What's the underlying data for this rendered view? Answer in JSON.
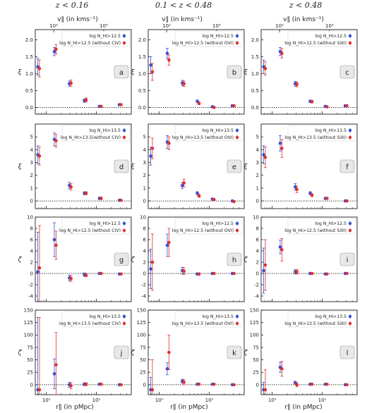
{
  "column_titles": [
    "z < 0.16",
    "0.1 < z < 0.48",
    "z < 0.48"
  ],
  "top_axis_label": "v∥ (in kms⁻¹)",
  "bottom_axis_label": "r∥ (in pMpc)",
  "chart_data": [
    {
      "type": "scatter",
      "panel": "a",
      "ylabel": "ξ",
      "ylim": [
        -0.2,
        2.3
      ],
      "yticks": [
        0.0,
        0.5,
        1.0,
        1.5,
        2.0
      ],
      "xlim": [
        0.6,
        50
      ],
      "series": [
        {
          "name": "log N_HI>12.5",
          "color": "#3a4fd6",
          "x": [
            0.7,
            1.5,
            3.0,
            6.0,
            12.0,
            30.0
          ],
          "y": [
            1.2,
            1.65,
            0.7,
            0.2,
            0.03,
            0.08
          ],
          "err": [
            0.25,
            0.12,
            0.08,
            0.05,
            0.03,
            0.03
          ]
        },
        {
          "name": "log N_HI>12.5 (without CIV)",
          "color": "#e03030",
          "x": [
            0.7,
            1.5,
            3.0,
            6.0,
            12.0,
            30.0
          ],
          "y": [
            1.15,
            1.72,
            0.72,
            0.22,
            0.03,
            0.08
          ],
          "err": [
            0.25,
            0.14,
            0.09,
            0.06,
            0.03,
            0.03
          ]
        }
      ],
      "tag": "a"
    },
    {
      "type": "scatter",
      "panel": "b",
      "ylabel": "ξ",
      "ylim": [
        -0.2,
        2.3
      ],
      "yticks": [
        0.0,
        0.5,
        1.0,
        1.5,
        2.0
      ],
      "xlim": [
        0.6,
        50
      ],
      "series": [
        {
          "name": "log N_HI>12.5",
          "color": "#3a4fd6",
          "x": [
            0.7,
            1.5,
            3.0,
            6.0,
            12.0,
            30.0
          ],
          "y": [
            1.25,
            1.6,
            0.72,
            0.18,
            0.02,
            0.05
          ],
          "err": [
            0.25,
            0.15,
            0.08,
            0.04,
            0.03,
            0.03
          ]
        },
        {
          "name": "log N_HI>12.5 (without OVI)",
          "color": "#e03030",
          "x": [
            0.7,
            1.5,
            3.0,
            6.0,
            12.0,
            30.0
          ],
          "y": [
            1.05,
            1.4,
            0.7,
            0.12,
            0.0,
            0.05
          ],
          "err": [
            0.25,
            0.15,
            0.08,
            0.04,
            0.03,
            0.03
          ]
        }
      ],
      "tag": "b"
    },
    {
      "type": "scatter",
      "panel": "c",
      "ylabel": "ξ",
      "ylim": [
        -0.2,
        2.3
      ],
      "yticks": [
        0.0,
        0.5,
        1.0,
        1.5,
        2.0
      ],
      "xlim": [
        0.6,
        50
      ],
      "series": [
        {
          "name": "log N_HI>12.5",
          "color": "#3a4fd6",
          "x": [
            0.7,
            1.5,
            3.0,
            6.0,
            12.0,
            30.0
          ],
          "y": [
            1.2,
            1.65,
            0.7,
            0.18,
            0.03,
            0.05
          ],
          "err": [
            0.2,
            0.12,
            0.07,
            0.04,
            0.02,
            0.02
          ]
        },
        {
          "name": "log N_HI>12.5 (without SiIII)",
          "color": "#e03030",
          "x": [
            0.7,
            1.5,
            3.0,
            6.0,
            12.0,
            30.0
          ],
          "y": [
            1.15,
            1.6,
            0.68,
            0.17,
            0.02,
            0.05
          ],
          "err": [
            0.2,
            0.14,
            0.07,
            0.04,
            0.02,
            0.02
          ]
        }
      ],
      "tag": "c"
    },
    {
      "type": "scatter",
      "panel": "d",
      "ylabel": "ξ",
      "ylim": [
        -0.6,
        6.0
      ],
      "yticks": [
        0,
        1,
        2,
        3,
        4,
        5
      ],
      "xlim": [
        0.6,
        50
      ],
      "series": [
        {
          "name": "log N_HI>13.5",
          "color": "#3a4fd6",
          "x": [
            0.7,
            1.5,
            3.0,
            6.0,
            12.0,
            30.0
          ],
          "y": [
            3.6,
            4.8,
            1.2,
            0.6,
            0.2,
            0.05
          ],
          "err": [
            0.7,
            0.5,
            0.25,
            0.12,
            0.1,
            0.05
          ]
        },
        {
          "name": "log N_HI>13.5(without CIV)",
          "color": "#e03030",
          "x": [
            0.7,
            1.5,
            3.0,
            6.0,
            12.0,
            30.0
          ],
          "y": [
            3.5,
            4.7,
            1.1,
            0.6,
            0.2,
            0.05
          ],
          "err": [
            0.7,
            0.5,
            0.25,
            0.12,
            0.1,
            0.05
          ]
        }
      ],
      "tag": "d"
    },
    {
      "type": "scatter",
      "panel": "e",
      "ylabel": "ξ",
      "ylim": [
        -0.6,
        6.0
      ],
      "yticks": [
        0,
        1,
        2,
        3,
        4,
        5
      ],
      "xlim": [
        0.6,
        50
      ],
      "series": [
        {
          "name": "log N_HI>13.5",
          "color": "#3a4fd6",
          "x": [
            0.7,
            1.5,
            3.0,
            6.0,
            12.0,
            30.0
          ],
          "y": [
            3.5,
            4.6,
            1.2,
            0.6,
            0.15,
            0.0
          ],
          "err": [
            0.7,
            0.5,
            0.25,
            0.12,
            0.08,
            0.05
          ]
        },
        {
          "name": "log N_HI>13.5 (without OVI)",
          "color": "#e03030",
          "x": [
            0.7,
            1.5,
            3.0,
            6.0,
            12.0,
            30.0
          ],
          "y": [
            4.1,
            4.5,
            1.4,
            0.4,
            0.1,
            -0.05
          ],
          "err": [
            0.8,
            0.5,
            0.3,
            0.12,
            0.08,
            0.05
          ]
        }
      ],
      "tag": "e"
    },
    {
      "type": "scatter",
      "panel": "f",
      "ylabel": "ξ",
      "ylim": [
        -0.6,
        6.0
      ],
      "yticks": [
        0,
        1,
        2,
        3,
        4,
        5
      ],
      "xlim": [
        0.6,
        50
      ],
      "series": [
        {
          "name": "log N_HI>13.5",
          "color": "#3a4fd6",
          "x": [
            0.7,
            1.5,
            3.0,
            6.0,
            12.0,
            30.0
          ],
          "y": [
            3.6,
            4.5,
            1.1,
            0.6,
            0.2,
            0.0
          ],
          "err": [
            0.7,
            0.6,
            0.25,
            0.12,
            0.08,
            0.05
          ]
        },
        {
          "name": "log N_HI>13.5 (without SiIII)",
          "color": "#e03030",
          "x": [
            0.7,
            1.5,
            3.0,
            6.0,
            12.0,
            30.0
          ],
          "y": [
            3.4,
            4.1,
            0.9,
            0.45,
            0.2,
            0.0
          ],
          "err": [
            0.8,
            0.7,
            0.25,
            0.12,
            0.08,
            0.05
          ]
        }
      ],
      "tag": "f"
    },
    {
      "type": "scatter",
      "panel": "g",
      "ylabel": "ζ",
      "ylim": [
        -5,
        10
      ],
      "yticks": [
        -4,
        -2,
        0,
        2,
        4,
        6,
        8,
        10
      ],
      "xlim": [
        0.6,
        50
      ],
      "series": [
        {
          "name": "log N_HI>12.5",
          "color": "#3a4fd6",
          "x": [
            0.7,
            1.5,
            3.0,
            6.0,
            12.0,
            30.0
          ],
          "y": [
            0.3,
            6.0,
            -0.8,
            -0.2,
            0.0,
            -0.1
          ],
          "err": [
            7.0,
            3.0,
            0.5,
            0.3,
            0.15,
            0.1
          ]
        },
        {
          "name": "log N_HI>12.5 (without CIV)",
          "color": "#e03030",
          "x": [
            0.7,
            1.5,
            3.0,
            6.0,
            12.0,
            30.0
          ],
          "y": [
            1.0,
            5.0,
            -0.9,
            -0.3,
            0.0,
            -0.1
          ],
          "err": [
            7.5,
            2.5,
            0.5,
            0.3,
            0.15,
            0.1
          ]
        }
      ],
      "tag": "g"
    },
    {
      "type": "scatter",
      "panel": "h",
      "ylabel": "ζ",
      "ylim": [
        -5,
        10
      ],
      "yticks": [
        -4,
        -2,
        0,
        2,
        4,
        6,
        8,
        10
      ],
      "xlim": [
        0.6,
        50
      ],
      "series": [
        {
          "name": "log N_HI>12.5",
          "color": "#3a4fd6",
          "x": [
            0.7,
            1.5,
            3.0,
            6.0,
            12.0,
            30.0
          ],
          "y": [
            0.8,
            5.0,
            0.5,
            -0.1,
            0.0,
            0.0
          ],
          "err": [
            3.5,
            2.0,
            0.6,
            0.2,
            0.1,
            0.1
          ]
        },
        {
          "name": "log N_HI>12.5 (without OVI)",
          "color": "#e03030",
          "x": [
            0.7,
            1.5,
            3.0,
            6.0,
            12.0,
            30.0
          ],
          "y": [
            2.0,
            5.5,
            0.4,
            -0.1,
            0.0,
            0.0
          ],
          "err": [
            5.0,
            2.5,
            0.6,
            0.2,
            0.1,
            0.1
          ]
        }
      ],
      "tag": "h"
    },
    {
      "type": "scatter",
      "panel": "i",
      "ylabel": "ζ",
      "ylim": [
        -5,
        10
      ],
      "yticks": [
        -4,
        -2,
        0,
        2,
        4,
        6,
        8,
        10
      ],
      "xlim": [
        0.6,
        50
      ],
      "series": [
        {
          "name": "log N_HI>12.5",
          "color": "#3a4fd6",
          "x": [
            0.7,
            1.5,
            3.0,
            6.0,
            12.0,
            30.0
          ],
          "y": [
            0.5,
            4.7,
            0.3,
            0.0,
            -0.1,
            0.0
          ],
          "err": [
            4.0,
            1.2,
            0.4,
            0.2,
            0.1,
            0.1
          ]
        },
        {
          "name": "log N_HI>12.5 (without SiIII)",
          "color": "#e03030",
          "x": [
            0.7,
            1.5,
            3.0,
            6.0,
            12.0,
            30.0
          ],
          "y": [
            1.5,
            4.2,
            0.3,
            0.0,
            -0.1,
            0.0
          ],
          "err": [
            4.5,
            2.0,
            0.4,
            0.2,
            0.1,
            0.1
          ]
        }
      ],
      "tag": "i"
    },
    {
      "type": "scatter",
      "panel": "j",
      "ylabel": "ζ",
      "ylim": [
        -20,
        150
      ],
      "yticks": [
        0,
        25,
        50,
        75,
        100,
        125,
        150
      ],
      "xlim": [
        0.6,
        50
      ],
      "series": [
        {
          "name": "log N_HI>13.5",
          "color": "#3a4fd6",
          "x": [
            0.7,
            1.5,
            3.0,
            6.0,
            12.0,
            30.0
          ],
          "y": [
            -10,
            22,
            0,
            1,
            1,
            0
          ],
          "err": [
            145,
            30,
            5,
            3,
            2,
            1
          ]
        },
        {
          "name": "log N_HI>13.5 (without CIV)",
          "color": "#e03030",
          "x": [
            0.7,
            1.5,
            3.0,
            6.0,
            12.0,
            30.0
          ],
          "y": [
            -10,
            40,
            -2,
            1,
            1,
            0
          ],
          "err": [
            145,
            65,
            6,
            3,
            2,
            1
          ]
        }
      ],
      "tag": "j"
    },
    {
      "type": "scatter",
      "panel": "k",
      "ylabel": "ζ",
      "ylim": [
        -20,
        150
      ],
      "yticks": [
        0,
        25,
        50,
        75,
        100,
        125,
        150
      ],
      "xlim": [
        0.6,
        50
      ],
      "series": [
        {
          "name": "log N_HI>13.5",
          "color": "#3a4fd6",
          "x": [
            0.7,
            1.5,
            3.0,
            6.0,
            12.0,
            30.0
          ],
          "y": [
            -10,
            32,
            7,
            1,
            1,
            0
          ],
          "err": [
            25,
            12,
            4,
            2,
            1,
            1
          ]
        },
        {
          "name": "log N_HI>13.5 (without OVI)",
          "color": "#e03030",
          "x": [
            0.7,
            1.5,
            3.0,
            6.0,
            12.0,
            30.0
          ],
          "y": [
            -10,
            65,
            5,
            1,
            1,
            0
          ],
          "err": [
            60,
            35,
            5,
            2,
            1,
            1
          ]
        }
      ],
      "tag": "k"
    },
    {
      "type": "scatter",
      "panel": "l",
      "ylabel": "ζ",
      "ylim": [
        -20,
        150
      ],
      "yticks": [
        0,
        25,
        50,
        75,
        100,
        125,
        150
      ],
      "xlim": [
        0.6,
        50
      ],
      "series": [
        {
          "name": "log N_HI>13.5",
          "color": "#3a4fd6",
          "x": [
            0.7,
            1.5,
            3.0,
            6.0,
            12.0,
            30.0
          ],
          "y": [
            -10,
            35,
            4,
            1,
            1,
            0
          ],
          "err": [
            15,
            10,
            3,
            2,
            1,
            1
          ]
        },
        {
          "name": "log N_HI>13.5 (without SiIII)",
          "color": "#e03030",
          "x": [
            0.7,
            1.5,
            3.0,
            6.0,
            12.0,
            30.0
          ],
          "y": [
            -10,
            32,
            0,
            1,
            1,
            0
          ],
          "err": [
            40,
            15,
            4,
            2,
            1,
            1
          ]
        }
      ],
      "tag": "l"
    }
  ]
}
